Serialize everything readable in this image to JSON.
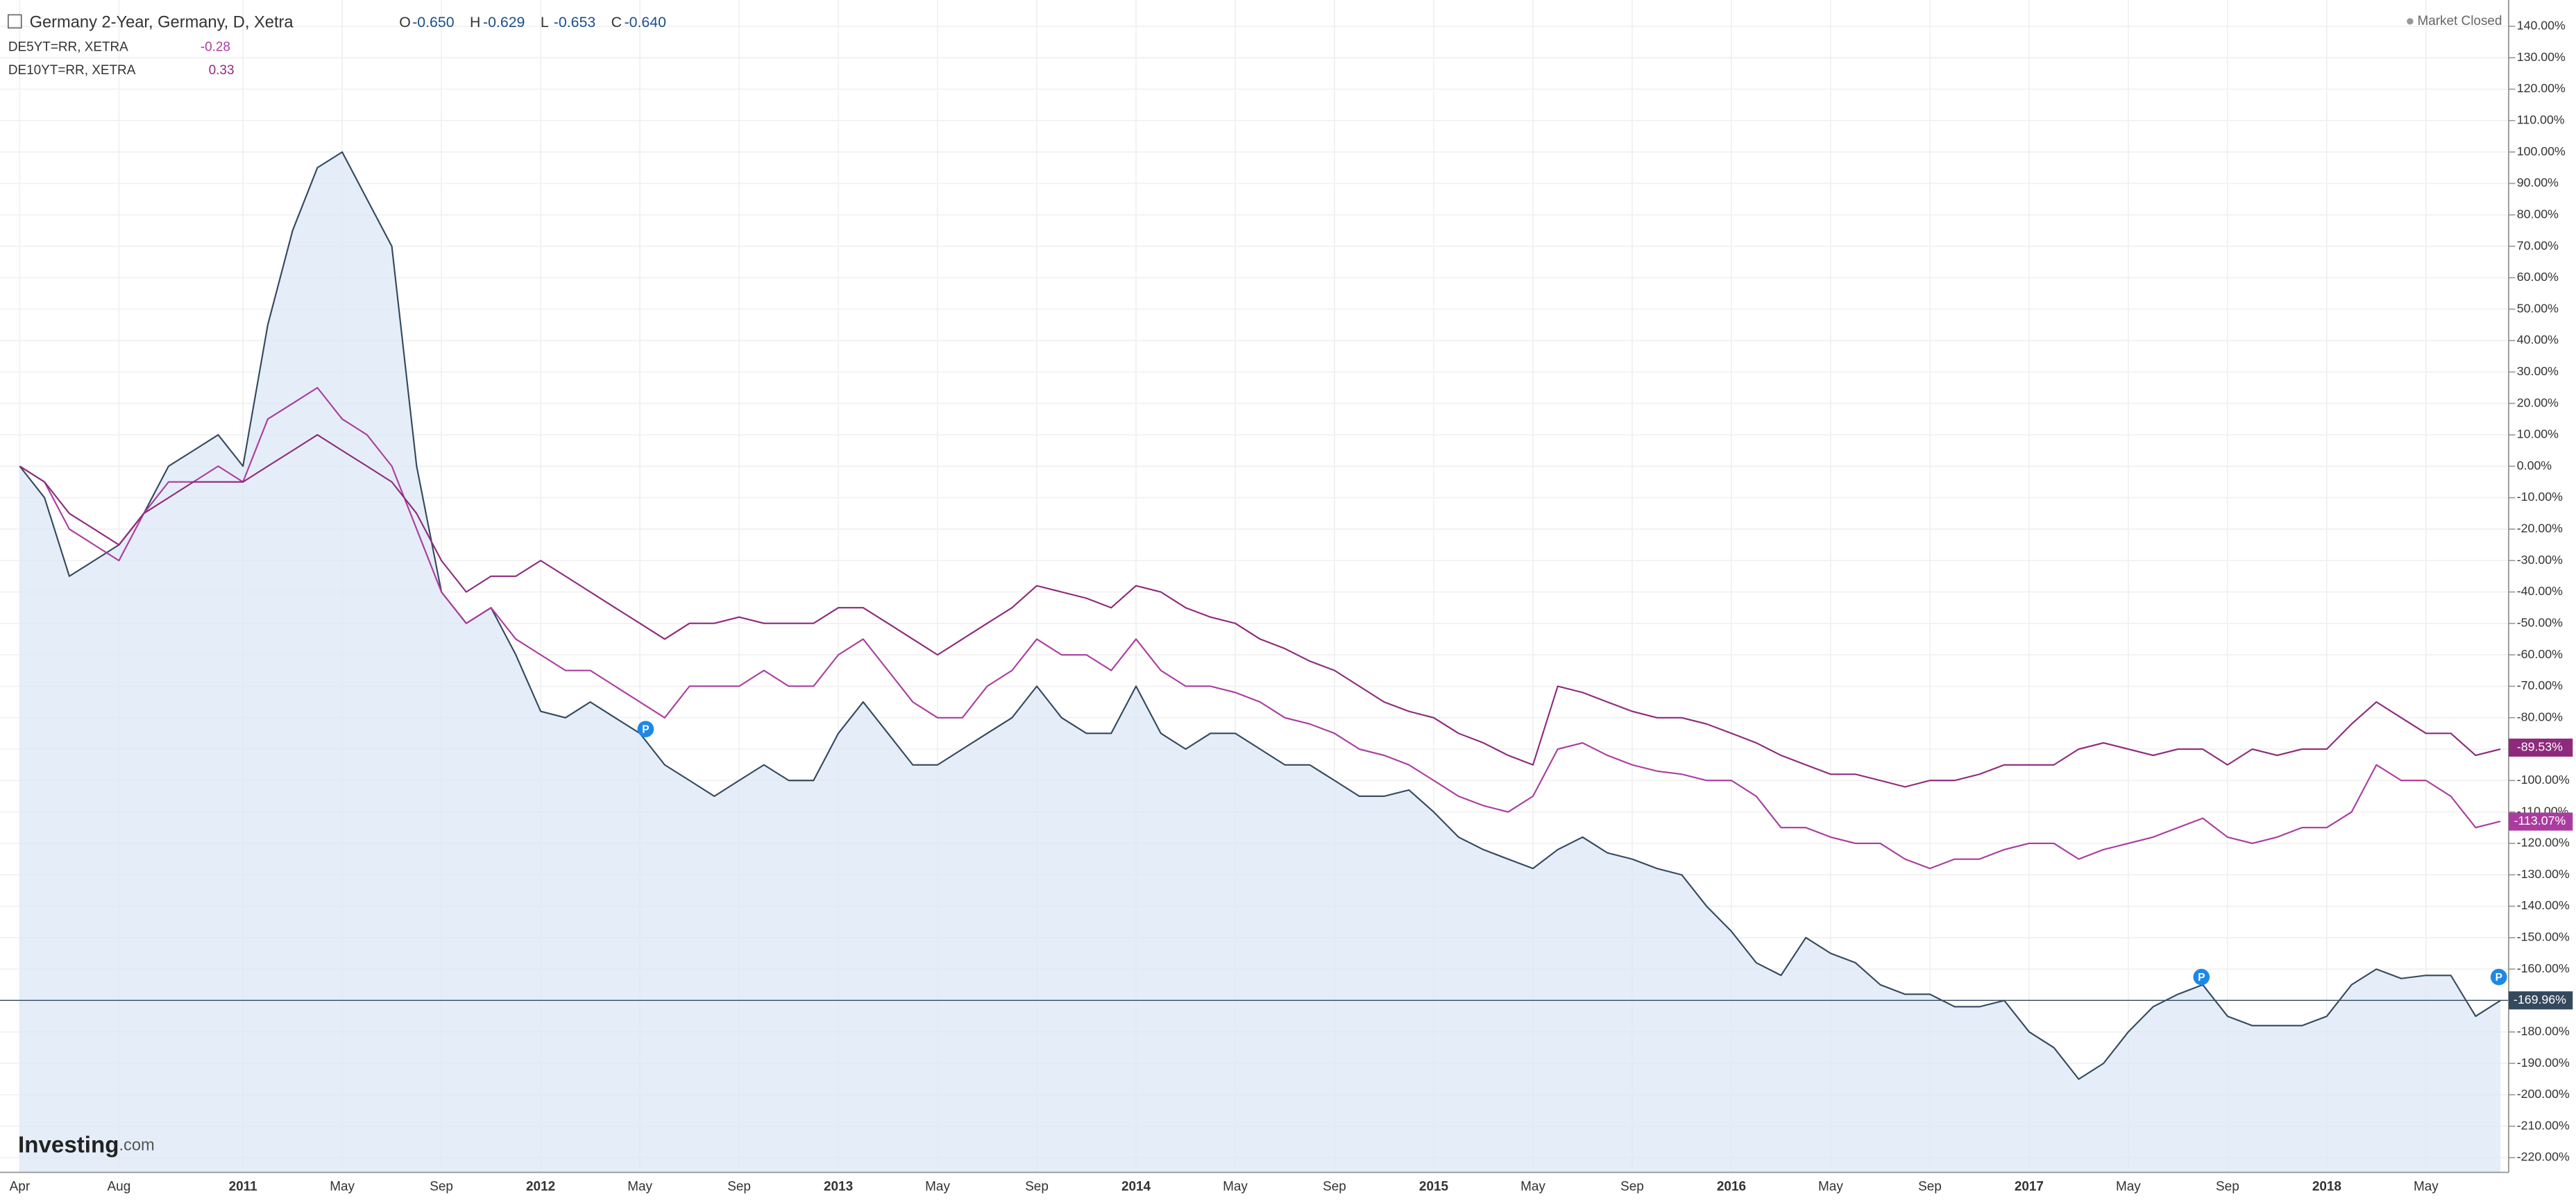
{
  "chart_data": {
    "type": "line",
    "header": {
      "title": "Germany 2-Year, Germany, D, Xetra",
      "ohlc": [
        {
          "key": "O",
          "value": "-0.650"
        },
        {
          "key": "H",
          "value": "-0.629"
        },
        {
          "key": "L",
          "value": "-0.653"
        },
        {
          "key": "C",
          "value": "-0.640"
        }
      ]
    },
    "status": "Market Closed",
    "brand": "Investing",
    "brand_suffix": ".com",
    "event_marker": "P",
    "categories": [
      "Apr",
      null,
      null,
      null,
      "Aug",
      null,
      null,
      null,
      null,
      "2011",
      null,
      null,
      null,
      "May",
      null,
      null,
      null,
      "Sep",
      null,
      null,
      null,
      "2012",
      null,
      null,
      null,
      "May",
      null,
      null,
      null,
      "Sep",
      null,
      null,
      null,
      "2013",
      null,
      null,
      null,
      "May",
      null,
      null,
      null,
      "Sep",
      null,
      null,
      null,
      "2014",
      null,
      null,
      null,
      "May",
      null,
      null,
      null,
      "Sep",
      null,
      null,
      null,
      "2015",
      null,
      null,
      null,
      "May",
      null,
      null,
      null,
      "Sep",
      null,
      null,
      null,
      "2016",
      null,
      null,
      null,
      "May",
      null,
      null,
      null,
      "Sep",
      null,
      null,
      null,
      "2017",
      null,
      null,
      null,
      "May",
      null,
      null,
      null,
      "Sep",
      null,
      null,
      null,
      "2018",
      null,
      null,
      null,
      "May",
      null,
      null,
      null
    ],
    "series": [
      {
        "name": "Germany 2-Year",
        "color": "#34495e",
        "fill": "#dce8f6",
        "legend_value": null,
        "last": {
          "value": -169.96,
          "label": "-169.96%"
        },
        "values": [
          0,
          -10,
          -35,
          -30,
          -25,
          -15,
          0,
          5,
          10,
          0,
          45,
          75,
          95,
          100,
          85,
          70,
          0,
          -40,
          -50,
          -45,
          -60,
          -78,
          -80,
          -75,
          -80,
          -85,
          -95,
          -100,
          -105,
          -100,
          -95,
          -100,
          -100,
          -85,
          -75,
          -85,
          -95,
          -95,
          -90,
          -85,
          -80,
          -70,
          -80,
          -85,
          -85,
          -70,
          -85,
          -90,
          -85,
          -85,
          -90,
          -95,
          -95,
          -100,
          -105,
          -105,
          -103,
          -110,
          -118,
          -122,
          -125,
          -128,
          -122,
          -118,
          -123,
          -125,
          -128,
          -130,
          -140,
          -148,
          -158,
          -162,
          -150,
          -155,
          -158,
          -165,
          -168,
          -168,
          -172,
          -172,
          -170,
          -180,
          -185,
          -195,
          -190,
          -180,
          -172,
          -168,
          -165,
          -175,
          -178,
          -178,
          -178,
          -175,
          -165,
          -160,
          -163,
          -162,
          -162,
          -175,
          -170
        ]
      },
      {
        "name": "DE5YT=RR, XETRA",
        "color": "#ab3c9f",
        "legend_value": "-0.28",
        "last": {
          "value": -113.07,
          "label": "-113.07%"
        },
        "values": [
          0,
          -5,
          -20,
          -25,
          -30,
          -15,
          -5,
          -5,
          0,
          -5,
          15,
          20,
          25,
          15,
          10,
          0,
          -20,
          -40,
          -50,
          -45,
          -55,
          -60,
          -65,
          -65,
          -70,
          -75,
          -80,
          -70,
          -70,
          -70,
          -65,
          -70,
          -70,
          -60,
          -55,
          -65,
          -75,
          -80,
          -80,
          -70,
          -65,
          -55,
          -60,
          -60,
          -65,
          -55,
          -65,
          -70,
          -70,
          -72,
          -75,
          -80,
          -82,
          -85,
          -90,
          -92,
          -95,
          -100,
          -105,
          -108,
          -110,
          -105,
          -90,
          -88,
          -92,
          -95,
          -97,
          -98,
          -100,
          -100,
          -105,
          -115,
          -115,
          -118,
          -120,
          -120,
          -125,
          -128,
          -125,
          -125,
          -122,
          -120,
          -120,
          -125,
          -122,
          -120,
          -118,
          -115,
          -112,
          -118,
          -120,
          -118,
          -115,
          -115,
          -110,
          -95,
          -100,
          -100,
          -105,
          -115,
          -113
        ]
      },
      {
        "name": "DE10YT=RR, XETRA",
        "color": "#8e2a7c",
        "legend_value": "0.33",
        "last": {
          "value": -89.53,
          "label": "-89.53%"
        },
        "values": [
          0,
          -5,
          -15,
          -20,
          -25,
          -15,
          -10,
          -5,
          -5,
          -5,
          0,
          5,
          10,
          5,
          0,
          -5,
          -15,
          -30,
          -40,
          -35,
          -35,
          -30,
          -35,
          -40,
          -45,
          -50,
          -55,
          -50,
          -50,
          -48,
          -50,
          -50,
          -50,
          -45,
          -45,
          -50,
          -55,
          -60,
          -55,
          -50,
          -45,
          -38,
          -40,
          -42,
          -45,
          -38,
          -40,
          -45,
          -48,
          -50,
          -55,
          -58,
          -62,
          -65,
          -70,
          -75,
          -78,
          -80,
          -85,
          -88,
          -92,
          -95,
          -70,
          -72,
          -75,
          -78,
          -80,
          -80,
          -82,
          -85,
          -88,
          -92,
          -95,
          -98,
          -98,
          -100,
          -102,
          -100,
          -100,
          -98,
          -95,
          -95,
          -95,
          -90,
          -88,
          -90,
          -92,
          -90,
          -90,
          -95,
          -90,
          -92,
          -90,
          -90,
          -82,
          -75,
          -80,
          -85,
          -85,
          -92,
          -90
        ]
      }
    ],
    "ylim": [
      -225,
      145
    ],
    "yticks": [
      {
        "value": 140,
        "label": "140.00%"
      },
      {
        "value": 130,
        "label": "130.00%"
      },
      {
        "value": 120,
        "label": "120.00%"
      },
      {
        "value": 110,
        "label": "110.00%"
      },
      {
        "value": 100,
        "label": "100.00%"
      },
      {
        "value": 90,
        "label": "90.00%"
      },
      {
        "value": 80,
        "label": "80.00%"
      },
      {
        "value": 70,
        "label": "70.00%"
      },
      {
        "value": 60,
        "label": "60.00%"
      },
      {
        "value": 50,
        "label": "50.00%"
      },
      {
        "value": 40,
        "label": "40.00%"
      },
      {
        "value": 30,
        "label": "30.00%"
      },
      {
        "value": 20,
        "label": "20.00%"
      },
      {
        "value": 10,
        "label": "10.00%"
      },
      {
        "value": 0,
        "label": "0.00%"
      },
      {
        "value": -10,
        "label": "-10.00%"
      },
      {
        "value": -20,
        "label": "-20.00%"
      },
      {
        "value": -30,
        "label": "-30.00%"
      },
      {
        "value": -40,
        "label": "-40.00%"
      },
      {
        "value": -50,
        "label": "-50.00%"
      },
      {
        "value": -60,
        "label": "-60.00%"
      },
      {
        "value": -70,
        "label": "-70.00%"
      },
      {
        "value": -80,
        "label": "-80.00%"
      },
      {
        "value": -90,
        "label": "-90.00%"
      },
      {
        "value": -100,
        "label": "-100.00%"
      },
      {
        "value": -110,
        "label": "-110.00%"
      },
      {
        "value": -120,
        "label": "-120.00%"
      },
      {
        "value": -130,
        "label": "-130.00%"
      },
      {
        "value": -140,
        "label": "-140.00%"
      },
      {
        "value": -150,
        "label": "-150.00%"
      },
      {
        "value": -160,
        "label": "-160.00%"
      },
      {
        "value": -170,
        "label": "-170.00%"
      },
      {
        "value": -180,
        "label": "-180.00%"
      },
      {
        "value": -190,
        "label": "-190.00%"
      },
      {
        "value": -200,
        "label": "-200.00%"
      },
      {
        "value": -210,
        "label": "-210.00%"
      },
      {
        "value": -220,
        "label": "-220.00%"
      }
    ],
    "grid": true
  }
}
